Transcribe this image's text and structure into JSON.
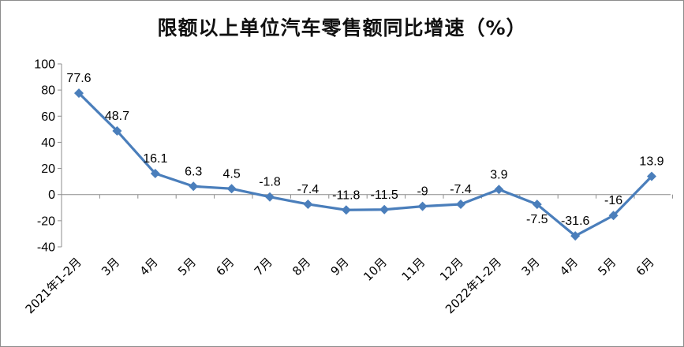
{
  "chart_data": {
    "type": "line",
    "title": "限额以上单位汽车零售额同比增速（%）",
    "xlabel": "",
    "ylabel": "",
    "ylim": [
      -40,
      100
    ],
    "yticks": [
      100,
      80,
      60,
      40,
      20,
      0,
      -20,
      -40
    ],
    "grid": false,
    "legend": "none",
    "categories": [
      "2021年1-2月",
      "3月",
      "4月",
      "5月",
      "6月",
      "7月",
      "8月",
      "9月",
      "10月",
      "11月",
      "12月",
      "2022年1-2月",
      "3月",
      "4月",
      "5月",
      "6月"
    ],
    "series": [
      {
        "values": [
          77.6,
          48.7,
          16.1,
          6.3,
          4.5,
          -1.8,
          -7.4,
          -11.8,
          -11.5,
          -9,
          -7.4,
          3.9,
          -7.5,
          -31.6,
          -16,
          13.9
        ],
        "labels": [
          "77.6",
          "48.7",
          "16.1",
          "6.3",
          "4.5",
          "-1.8",
          "-7.4",
          "-11.8",
          "-11.5",
          "-9",
          "-7.4",
          "3.9",
          "-7.5",
          "-31.6",
          "-16",
          "13.9"
        ],
        "color": "#4a7ebb"
      }
    ]
  }
}
